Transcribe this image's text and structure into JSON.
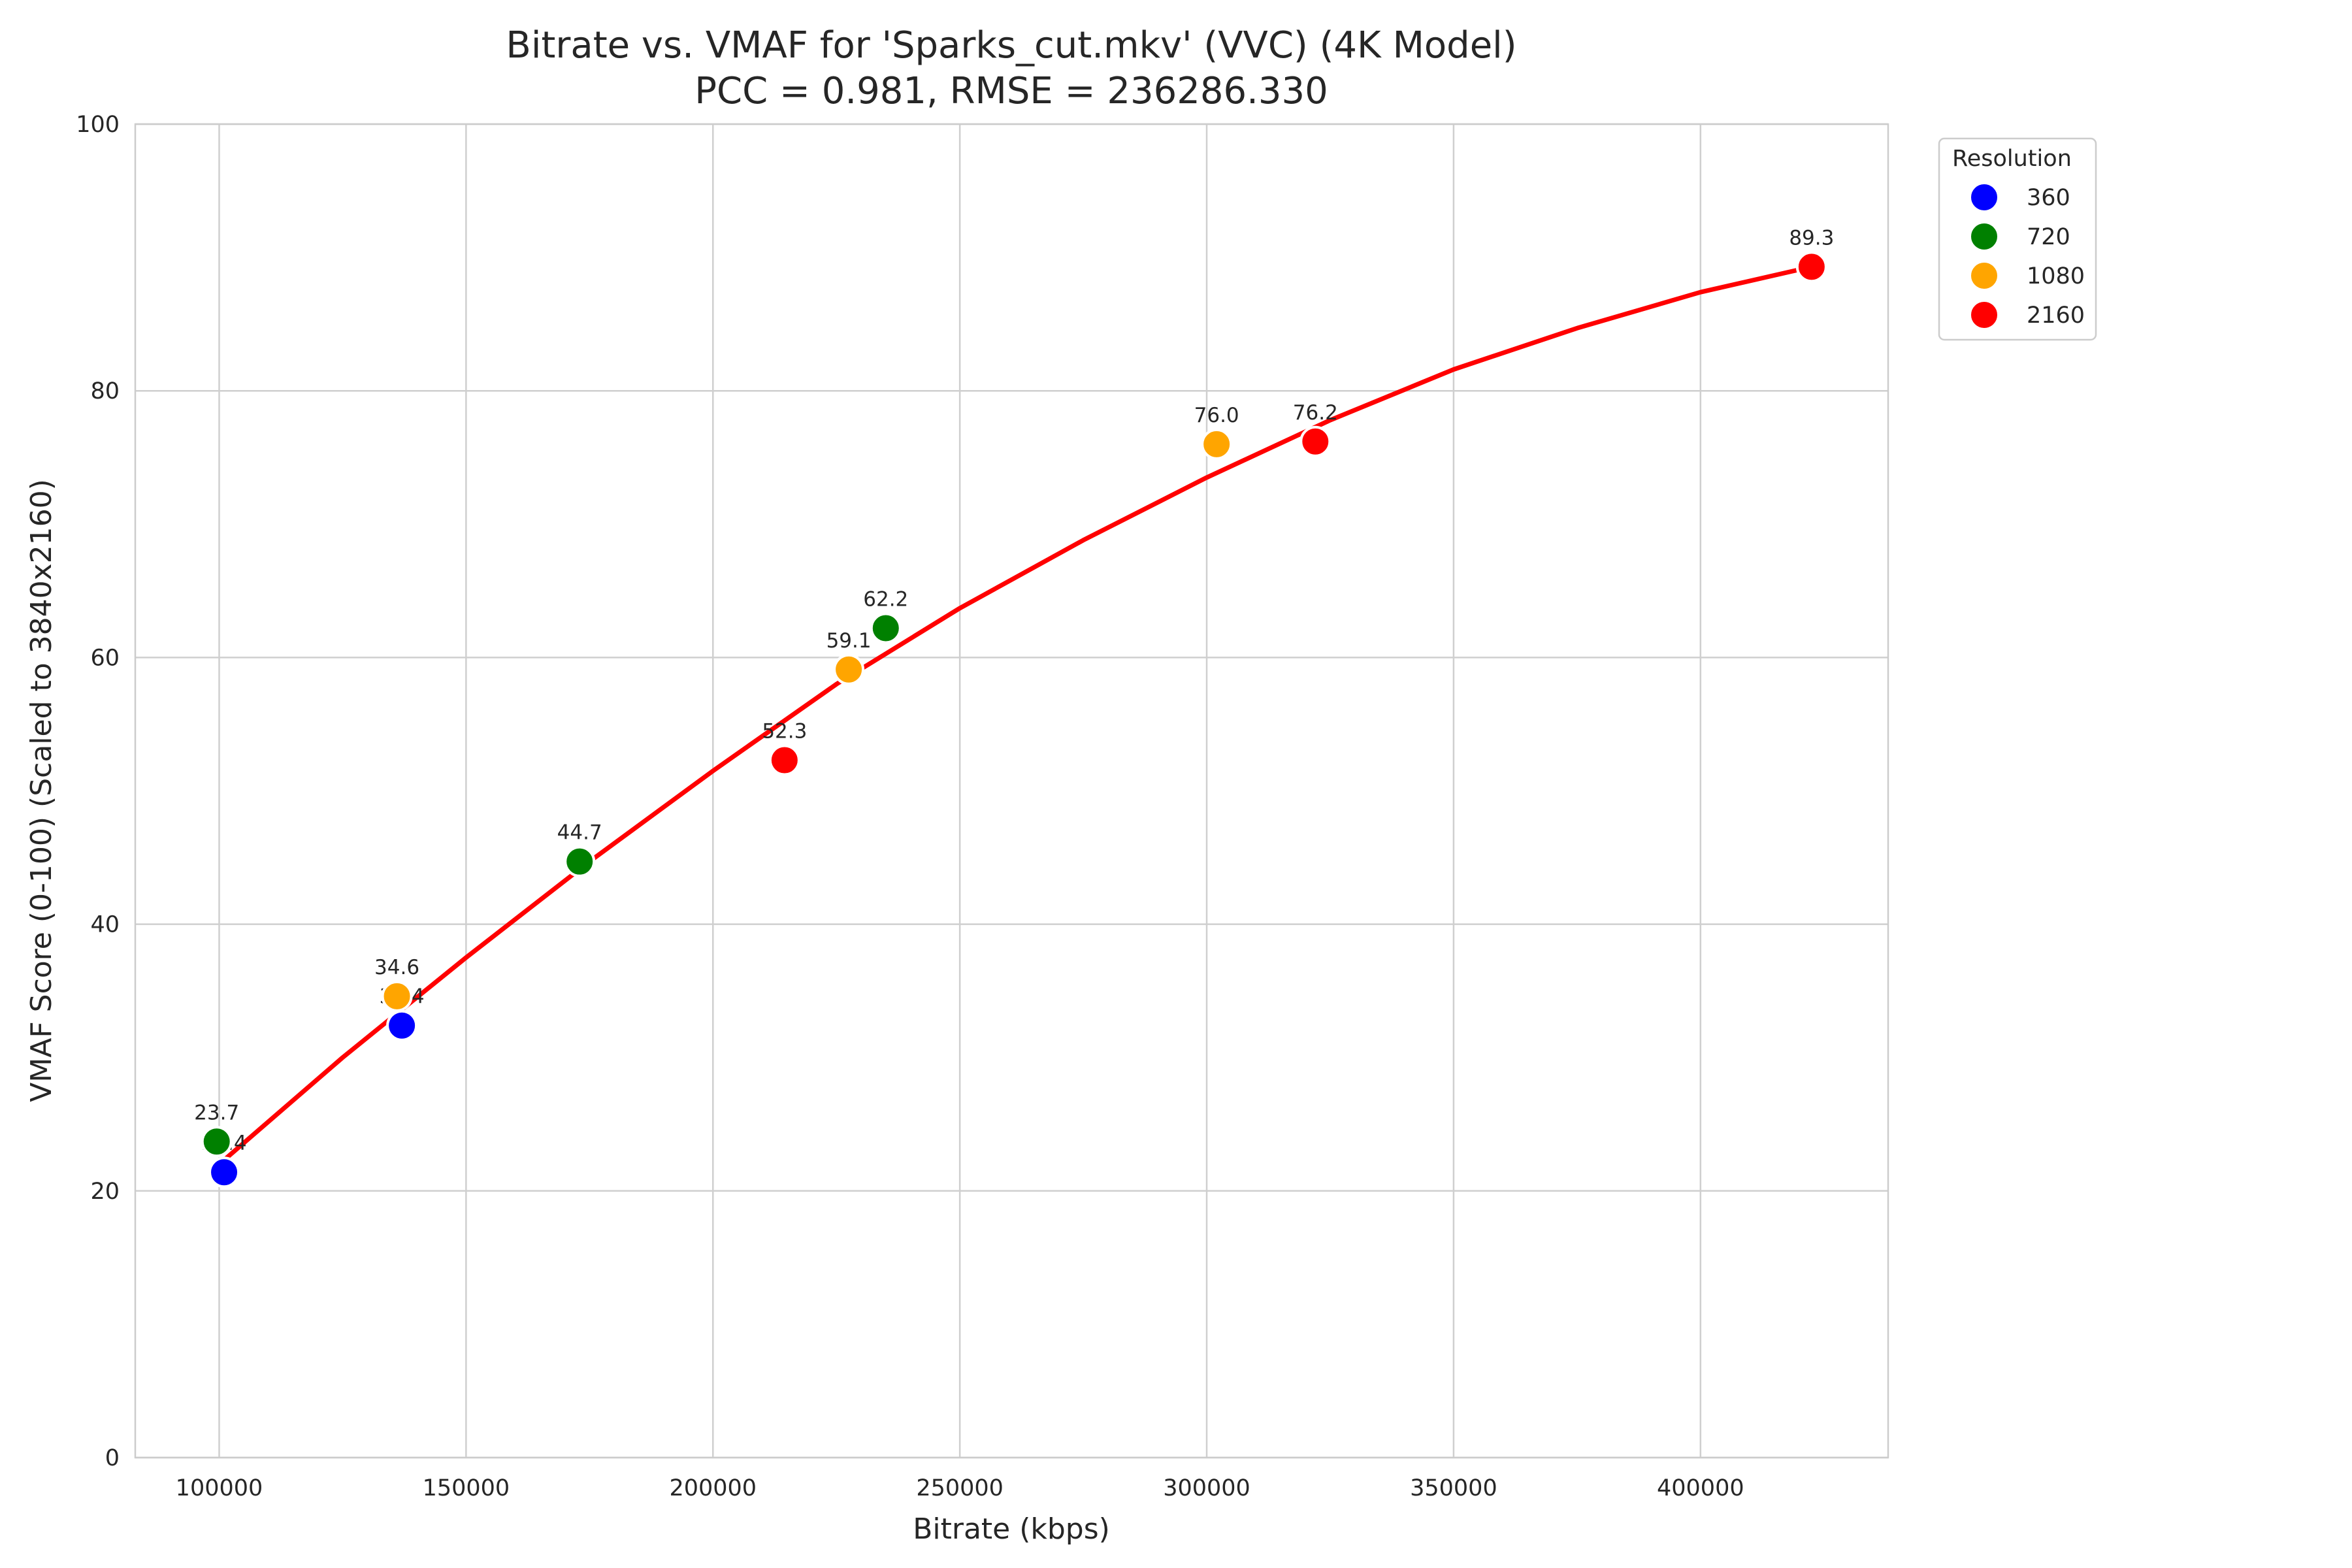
{
  "chart_data": {
    "type": "scatter",
    "title": "Bitrate vs. VMAF for 'Sparks_cut.mkv' (VVC) (4K Model)",
    "subtitle": "PCC = 0.981, RMSE = 236286.330",
    "xlabel": "Bitrate (kbps)",
    "ylabel": "VMAF Score (0-100) (Scaled to 3840x2160)",
    "xlim": [
      83000,
      438000
    ],
    "ylim": [
      0,
      100
    ],
    "xticks": [
      100000,
      150000,
      200000,
      250000,
      300000,
      350000,
      400000
    ],
    "yticks": [
      0,
      20,
      40,
      60,
      80,
      100
    ],
    "grid": true,
    "legend": {
      "title": "Resolution",
      "placement": "outside-top-right",
      "entries": [
        {
          "name": "360",
          "color": "#0000ff"
        },
        {
          "name": "720",
          "color": "#008000"
        },
        {
          "name": "1080",
          "color": "#ffa500"
        },
        {
          "name": "2160",
          "color": "#ff0000"
        }
      ]
    },
    "series": [
      {
        "name": "360",
        "color": "#0000ff",
        "points": [
          {
            "x": 101000,
            "y": 21.4,
            "label": "21.4"
          },
          {
            "x": 137000,
            "y": 32.4,
            "label": "32.4"
          }
        ]
      },
      {
        "name": "720",
        "color": "#008000",
        "points": [
          {
            "x": 99500,
            "y": 23.7,
            "label": "23.7"
          },
          {
            "x": 173000,
            "y": 44.7,
            "label": "44.7"
          },
          {
            "x": 235000,
            "y": 62.2,
            "label": "62.2"
          }
        ]
      },
      {
        "name": "1080",
        "color": "#ffa500",
        "points": [
          {
            "x": 136000,
            "y": 34.6,
            "label": "34.6"
          },
          {
            "x": 227500,
            "y": 59.1,
            "label": "59.1"
          },
          {
            "x": 302000,
            "y": 76.0,
            "label": "76.0"
          }
        ]
      },
      {
        "name": "2160",
        "color": "#ff0000",
        "points": [
          {
            "x": 214500,
            "y": 52.3,
            "label": "52.3"
          },
          {
            "x": 322000,
            "y": 76.2,
            "label": "76.2"
          },
          {
            "x": 422500,
            "y": 89.3,
            "label": "89.3"
          }
        ]
      }
    ],
    "fit_curve": {
      "color": "#ff0000",
      "points": [
        {
          "x": 100000,
          "y": 22.0
        },
        {
          "x": 125000,
          "y": 30.0
        },
        {
          "x": 150000,
          "y": 37.5
        },
        {
          "x": 175000,
          "y": 44.7
        },
        {
          "x": 200000,
          "y": 51.5
        },
        {
          "x": 225000,
          "y": 58.0
        },
        {
          "x": 250000,
          "y": 63.7
        },
        {
          "x": 275000,
          "y": 68.8
        },
        {
          "x": 300000,
          "y": 73.5
        },
        {
          "x": 325000,
          "y": 77.8
        },
        {
          "x": 350000,
          "y": 81.6
        },
        {
          "x": 375000,
          "y": 84.7
        },
        {
          "x": 400000,
          "y": 87.4
        },
        {
          "x": 422500,
          "y": 89.3
        }
      ]
    }
  }
}
